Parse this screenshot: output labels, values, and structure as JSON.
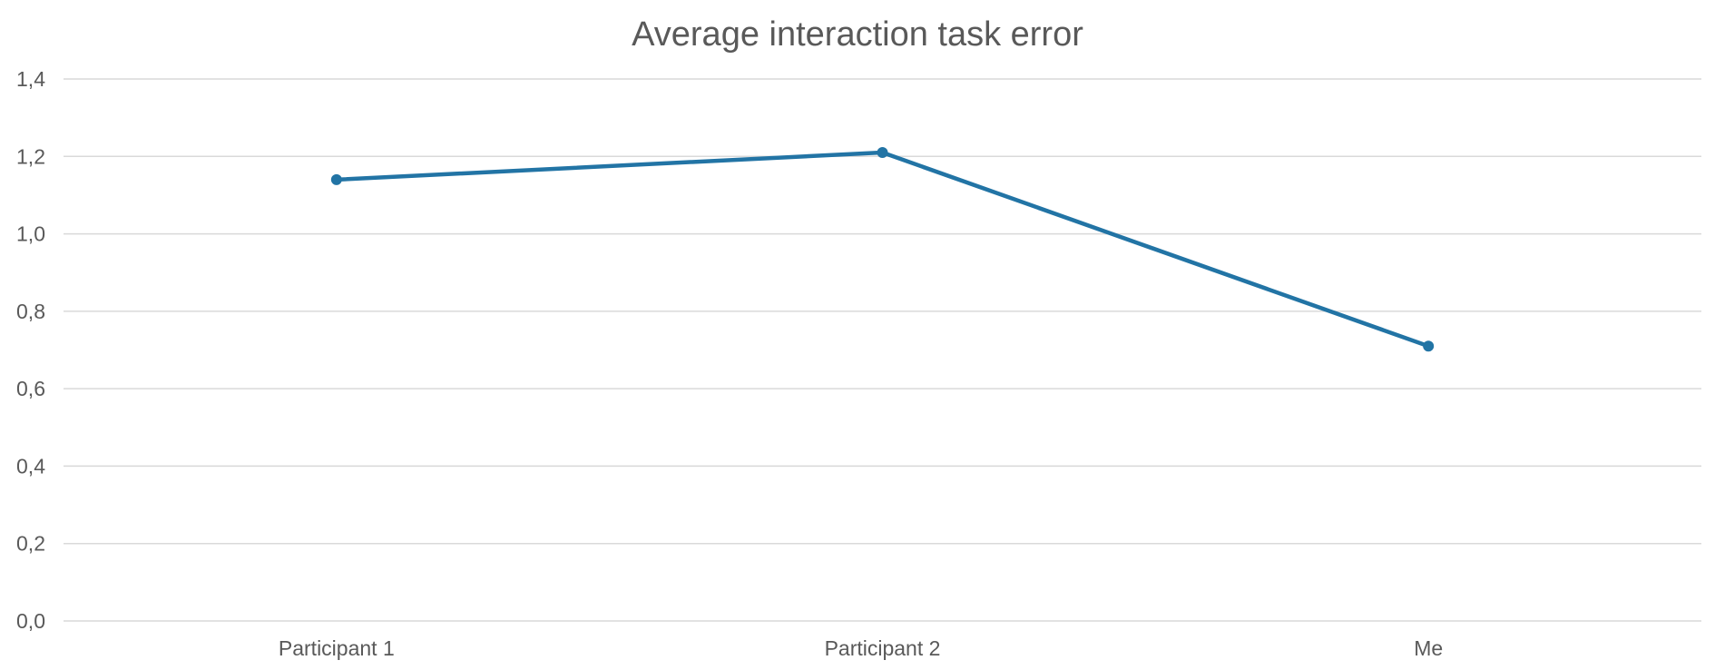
{
  "chart_data": {
    "type": "line",
    "title": "Average interaction task error",
    "xlabel": "",
    "ylabel": "",
    "categories": [
      "Participant 1",
      "Participant 2",
      "Me"
    ],
    "series": [
      {
        "values": [
          1.14,
          1.21,
          0.71
        ],
        "color": "#2274a5"
      }
    ],
    "ylim": [
      0,
      1.4
    ],
    "yticks": [
      0,
      0.2,
      0.4,
      0.6,
      0.8,
      1.0,
      1.2,
      1.4
    ],
    "ytick_labels": [
      "0,0",
      "0,2",
      "0,4",
      "0,6",
      "0,8",
      "1,0",
      "1,2",
      "1,4"
    ],
    "grid": true,
    "legend": "none",
    "colors": {
      "text": "#595959",
      "grid": "#d9d9d9",
      "series": "#2274a5"
    }
  }
}
